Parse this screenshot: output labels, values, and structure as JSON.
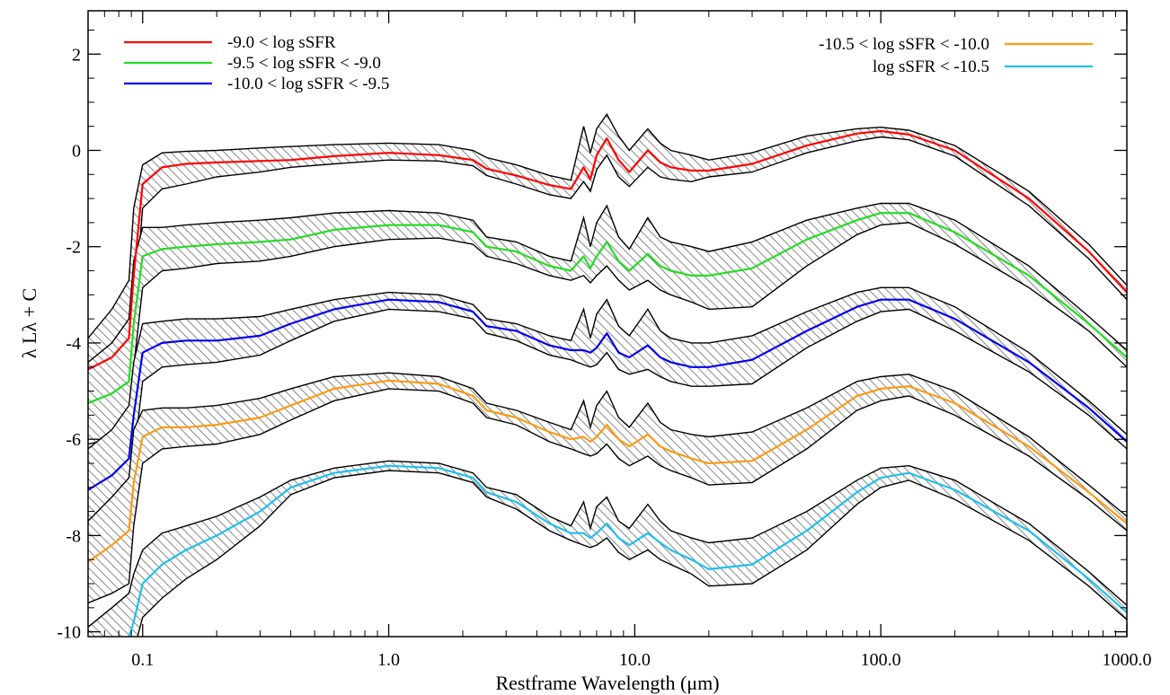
{
  "chart_data": {
    "type": "line",
    "title": "",
    "xlabel": "Restframe Wavelength (μm)",
    "ylabel": "λ Lλ + C",
    "x_scale": "log",
    "xlim": [
      0.06,
      1000
    ],
    "ylim": [
      -10.1,
      2.9
    ],
    "x_ticks": [
      {
        "value": 0.1,
        "label": "0.1"
      },
      {
        "value": 1.0,
        "label": "1.0"
      },
      {
        "value": 10.0,
        "label": "10.0"
      },
      {
        "value": 100.0,
        "label": "100.0"
      },
      {
        "value": 1000.0,
        "label": "1000.0"
      }
    ],
    "y_ticks": [
      {
        "value": 2,
        "label": "2"
      },
      {
        "value": 0,
        "label": "0"
      },
      {
        "value": -2,
        "label": "-2"
      },
      {
        "value": -4,
        "label": "-4"
      },
      {
        "value": -6,
        "label": "-6"
      },
      {
        "value": -8,
        "label": "-8"
      },
      {
        "value": -10,
        "label": "-10"
      }
    ],
    "grid": false,
    "legend": [
      {
        "label": "-9.0 < log sSFR",
        "position": "top-left",
        "color": "#ff0000"
      },
      {
        "label": "-9.5 < log sSFR < -9.0",
        "position": "top-left",
        "color": "#22dd22"
      },
      {
        "label": "-10.0 < log sSFR < -9.5",
        "position": "top-left",
        "color": "#0000ee"
      },
      {
        "label": "-10.5 < log sSFR < -10.0",
        "position": "top-right",
        "color": "#ff9910"
      },
      {
        "label": "log sSFR < -10.5",
        "position": "top-right",
        "color": "#1ebfef"
      }
    ],
    "band_style": "hatched grey band bounded by black lines",
    "series": [
      {
        "name": "-9.0 < log sSFR",
        "color": "#ff0000",
        "offset": 0.0,
        "x": [
          0.06,
          0.075,
          0.088,
          0.092,
          0.1,
          0.12,
          0.15,
          0.2,
          0.3,
          0.4,
          0.6,
          1.0,
          1.6,
          2.2,
          2.5,
          3.3,
          4.5,
          5.5,
          6.2,
          6.6,
          7.0,
          7.7,
          8.6,
          9.5,
          11.3,
          12.7,
          14.0,
          17.0,
          20.0,
          30.0,
          50.0,
          80.0,
          100.0,
          130.0,
          200.0,
          400.0,
          700.0,
          1000.0
        ],
        "y": [
          -4.55,
          -4.3,
          -3.9,
          -2.6,
          -0.7,
          -0.35,
          -0.28,
          -0.25,
          -0.22,
          -0.2,
          -0.12,
          -0.05,
          -0.1,
          -0.2,
          -0.38,
          -0.52,
          -0.72,
          -0.8,
          -0.35,
          -0.6,
          -0.1,
          0.25,
          -0.2,
          -0.45,
          0.0,
          -0.25,
          -0.35,
          -0.42,
          -0.42,
          -0.28,
          0.1,
          0.35,
          0.4,
          0.33,
          0.0,
          -1.0,
          -2.1,
          -2.95
        ],
        "upper": [
          -3.9,
          -3.3,
          -2.7,
          -1.2,
          -0.3,
          -0.05,
          -0.02,
          0.0,
          0.05,
          0.08,
          0.12,
          0.15,
          0.12,
          0.0,
          -0.15,
          -0.3,
          -0.52,
          -0.62,
          0.5,
          -0.05,
          0.45,
          0.75,
          0.3,
          0.0,
          0.45,
          0.15,
          0.0,
          -0.1,
          -0.2,
          -0.05,
          0.3,
          0.45,
          0.48,
          0.42,
          0.1,
          -0.85,
          -1.95,
          -2.8
        ],
        "lower": [
          -5.1,
          -4.9,
          -4.5,
          -3.5,
          -1.2,
          -0.8,
          -0.7,
          -0.55,
          -0.45,
          -0.35,
          -0.28,
          -0.2,
          -0.22,
          -0.32,
          -0.52,
          -0.7,
          -0.92,
          -1.0,
          -0.65,
          -0.85,
          -0.4,
          -0.1,
          -0.55,
          -0.75,
          -0.35,
          -0.55,
          -0.6,
          -0.65,
          -0.55,
          -0.45,
          -0.05,
          0.2,
          0.28,
          0.22,
          -0.12,
          -1.15,
          -2.25,
          -3.1
        ]
      },
      {
        "name": "-9.5 < log sSFR < -9.0",
        "color": "#22dd22",
        "offset": -1.75,
        "x": [
          0.06,
          0.075,
          0.088,
          0.092,
          0.1,
          0.12,
          0.15,
          0.2,
          0.3,
          0.4,
          0.6,
          1.0,
          1.6,
          2.2,
          2.5,
          3.3,
          4.5,
          5.5,
          6.2,
          6.6,
          7.0,
          7.7,
          8.6,
          9.5,
          11.3,
          12.7,
          14.0,
          17.0,
          20.0,
          30.0,
          50.0,
          80.0,
          100.0,
          130.0,
          200.0,
          400.0,
          700.0,
          1000.0
        ],
        "y": [
          -5.25,
          -5.05,
          -4.8,
          -3.6,
          -2.2,
          -2.05,
          -2.0,
          -1.95,
          -1.9,
          -1.85,
          -1.65,
          -1.55,
          -1.55,
          -1.7,
          -2.0,
          -2.1,
          -2.4,
          -2.5,
          -2.2,
          -2.45,
          -2.2,
          -1.9,
          -2.3,
          -2.5,
          -2.15,
          -2.4,
          -2.5,
          -2.6,
          -2.6,
          -2.45,
          -1.85,
          -1.45,
          -1.3,
          -1.3,
          -1.7,
          -2.6,
          -3.6,
          -4.3
        ],
        "upper": [
          -4.4,
          -4.0,
          -3.5,
          -2.3,
          -1.6,
          -1.6,
          -1.55,
          -1.5,
          -1.45,
          -1.4,
          -1.3,
          -1.25,
          -1.3,
          -1.45,
          -1.8,
          -1.9,
          -2.2,
          -2.3,
          -1.4,
          -2.0,
          -1.5,
          -1.15,
          -1.8,
          -2.05,
          -1.4,
          -1.8,
          -1.9,
          -2.0,
          -2.1,
          -1.9,
          -1.45,
          -1.2,
          -1.1,
          -1.1,
          -1.45,
          -2.4,
          -3.45,
          -4.15
        ],
        "lower": [
          -6.1,
          -6.0,
          -5.8,
          -4.5,
          -2.85,
          -2.5,
          -2.45,
          -2.35,
          -2.3,
          -2.2,
          -2.0,
          -1.85,
          -1.82,
          -1.95,
          -2.2,
          -2.35,
          -2.6,
          -2.7,
          -2.6,
          -2.75,
          -2.6,
          -2.4,
          -2.7,
          -2.9,
          -2.7,
          -2.9,
          -3.0,
          -3.15,
          -3.3,
          -3.25,
          -2.4,
          -1.75,
          -1.55,
          -1.5,
          -1.95,
          -2.85,
          -3.75,
          -4.5
        ]
      },
      {
        "name": "-10.0 < log sSFR < -9.5",
        "color": "#0000ee",
        "offset": -3.5,
        "x": [
          0.06,
          0.075,
          0.088,
          0.092,
          0.1,
          0.12,
          0.15,
          0.2,
          0.3,
          0.4,
          0.6,
          1.0,
          1.6,
          2.2,
          2.5,
          3.3,
          4.5,
          5.5,
          6.2,
          6.6,
          7.0,
          7.7,
          8.6,
          9.5,
          11.3,
          12.7,
          14.0,
          17.0,
          20.0,
          30.0,
          50.0,
          80.0,
          100.0,
          130.0,
          200.0,
          400.0,
          700.0,
          1000.0
        ],
        "y": [
          -7.05,
          -6.75,
          -6.4,
          -5.5,
          -4.2,
          -4.0,
          -3.95,
          -3.95,
          -3.85,
          -3.6,
          -3.3,
          -3.1,
          -3.15,
          -3.35,
          -3.65,
          -3.75,
          -4.05,
          -4.15,
          -4.15,
          -4.2,
          -4.1,
          -3.8,
          -4.2,
          -4.3,
          -4.05,
          -4.3,
          -4.4,
          -4.5,
          -4.5,
          -4.35,
          -3.75,
          -3.25,
          -3.1,
          -3.1,
          -3.5,
          -4.4,
          -5.35,
          -6.05
        ],
        "upper": [
          -6.2,
          -5.8,
          -5.3,
          -4.4,
          -3.6,
          -3.55,
          -3.5,
          -3.5,
          -3.45,
          -3.3,
          -3.1,
          -2.95,
          -3.0,
          -3.2,
          -3.5,
          -3.6,
          -3.85,
          -3.95,
          -3.3,
          -3.9,
          -3.4,
          -3.1,
          -3.65,
          -3.85,
          -3.3,
          -3.75,
          -3.9,
          -4.0,
          -4.0,
          -3.85,
          -3.35,
          -2.95,
          -2.85,
          -2.85,
          -3.25,
          -4.2,
          -5.2,
          -5.9
        ],
        "lower": [
          -7.9,
          -7.7,
          -7.4,
          -6.4,
          -4.8,
          -4.5,
          -4.45,
          -4.4,
          -4.25,
          -3.95,
          -3.55,
          -3.3,
          -3.35,
          -3.5,
          -3.8,
          -3.95,
          -4.25,
          -4.35,
          -4.45,
          -4.5,
          -4.45,
          -4.2,
          -4.55,
          -4.65,
          -4.55,
          -4.7,
          -4.8,
          -4.9,
          -4.9,
          -4.85,
          -4.1,
          -3.55,
          -3.35,
          -3.3,
          -3.75,
          -4.6,
          -5.5,
          -6.2
        ]
      },
      {
        "name": "-10.5 < log sSFR < -10.0",
        "color": "#ff9910",
        "offset": -5.25,
        "x": [
          0.06,
          0.075,
          0.088,
          0.092,
          0.1,
          0.12,
          0.15,
          0.2,
          0.3,
          0.4,
          0.6,
          1.0,
          1.6,
          2.2,
          2.5,
          3.3,
          4.5,
          5.5,
          6.2,
          6.6,
          7.0,
          7.7,
          8.6,
          9.5,
          11.3,
          12.7,
          14.0,
          17.0,
          20.0,
          30.0,
          50.0,
          80.0,
          100.0,
          130.0,
          200.0,
          400.0,
          700.0,
          1000.0
        ],
        "y": [
          -8.55,
          -8.2,
          -7.9,
          -6.9,
          -5.95,
          -5.75,
          -5.75,
          -5.7,
          -5.55,
          -5.3,
          -4.95,
          -4.78,
          -4.85,
          -5.1,
          -5.4,
          -5.55,
          -5.85,
          -6.0,
          -5.95,
          -6.05,
          -5.95,
          -5.7,
          -6.0,
          -6.15,
          -5.9,
          -6.15,
          -6.25,
          -6.4,
          -6.5,
          -6.45,
          -5.8,
          -5.1,
          -4.95,
          -4.9,
          -5.25,
          -6.15,
          -7.1,
          -7.75
        ],
        "upper": [
          -7.7,
          -7.2,
          -6.8,
          -5.8,
          -5.4,
          -5.35,
          -5.35,
          -5.3,
          -5.15,
          -4.95,
          -4.7,
          -4.62,
          -4.7,
          -4.95,
          -5.25,
          -5.4,
          -5.65,
          -5.8,
          -5.2,
          -5.75,
          -5.3,
          -5.0,
          -5.55,
          -5.75,
          -5.25,
          -5.65,
          -5.8,
          -5.9,
          -5.95,
          -5.85,
          -5.35,
          -4.8,
          -4.7,
          -4.65,
          -5.0,
          -5.95,
          -6.95,
          -7.6
        ],
        "lower": [
          -9.4,
          -9.2,
          -9.0,
          -7.8,
          -6.5,
          -6.2,
          -6.15,
          -6.1,
          -5.9,
          -5.6,
          -5.2,
          -4.95,
          -5.0,
          -5.25,
          -5.55,
          -5.7,
          -6.05,
          -6.2,
          -6.3,
          -6.35,
          -6.3,
          -6.1,
          -6.4,
          -6.55,
          -6.35,
          -6.55,
          -6.65,
          -6.8,
          -6.95,
          -6.9,
          -6.2,
          -5.4,
          -5.2,
          -5.1,
          -5.5,
          -6.35,
          -7.25,
          -7.9
        ]
      },
      {
        "name": "log sSFR < -10.5",
        "color": "#1ebfef",
        "offset": -7.0,
        "x": [
          0.06,
          0.075,
          0.088,
          0.092,
          0.1,
          0.12,
          0.15,
          0.2,
          0.3,
          0.4,
          0.6,
          1.0,
          1.6,
          2.2,
          2.5,
          3.3,
          4.5,
          5.5,
          6.2,
          6.6,
          7.0,
          7.7,
          8.6,
          9.5,
          11.3,
          12.7,
          14.0,
          17.0,
          20.0,
          30.0,
          50.0,
          80.0,
          100.0,
          130.0,
          200.0,
          400.0,
          700.0,
          1000.0
        ],
        "y": [
          -10.4,
          -10.3,
          -10.1,
          -9.8,
          -9.0,
          -8.6,
          -8.3,
          -8.0,
          -7.5,
          -7.0,
          -6.7,
          -6.55,
          -6.6,
          -6.8,
          -7.1,
          -7.3,
          -7.75,
          -7.95,
          -7.95,
          -8.05,
          -7.95,
          -7.75,
          -8.05,
          -8.2,
          -7.95,
          -8.15,
          -8.3,
          -8.5,
          -8.7,
          -8.6,
          -7.9,
          -7.1,
          -6.8,
          -6.7,
          -7.05,
          -7.9,
          -8.9,
          -9.6
        ],
        "upper": [
          -9.9,
          -9.5,
          -9.2,
          -8.8,
          -8.3,
          -7.95,
          -7.8,
          -7.6,
          -7.2,
          -6.85,
          -6.6,
          -6.45,
          -6.5,
          -6.7,
          -7.0,
          -7.15,
          -7.6,
          -7.8,
          -7.3,
          -7.85,
          -7.4,
          -7.2,
          -7.7,
          -7.85,
          -7.35,
          -7.7,
          -7.9,
          -8.05,
          -8.15,
          -8.05,
          -7.5,
          -6.85,
          -6.6,
          -6.55,
          -6.85,
          -7.75,
          -8.75,
          -9.45
        ],
        "lower": [
          -10.8,
          -10.8,
          -10.6,
          -10.4,
          -9.7,
          -9.3,
          -8.9,
          -8.5,
          -7.8,
          -7.15,
          -6.8,
          -6.65,
          -6.7,
          -6.9,
          -7.2,
          -7.45,
          -7.9,
          -8.1,
          -8.2,
          -8.25,
          -8.2,
          -8.05,
          -8.35,
          -8.5,
          -8.3,
          -8.5,
          -8.6,
          -8.8,
          -9.05,
          -9.0,
          -8.3,
          -7.35,
          -7.0,
          -6.85,
          -7.25,
          -8.1,
          -9.05,
          -9.75
        ]
      }
    ]
  }
}
